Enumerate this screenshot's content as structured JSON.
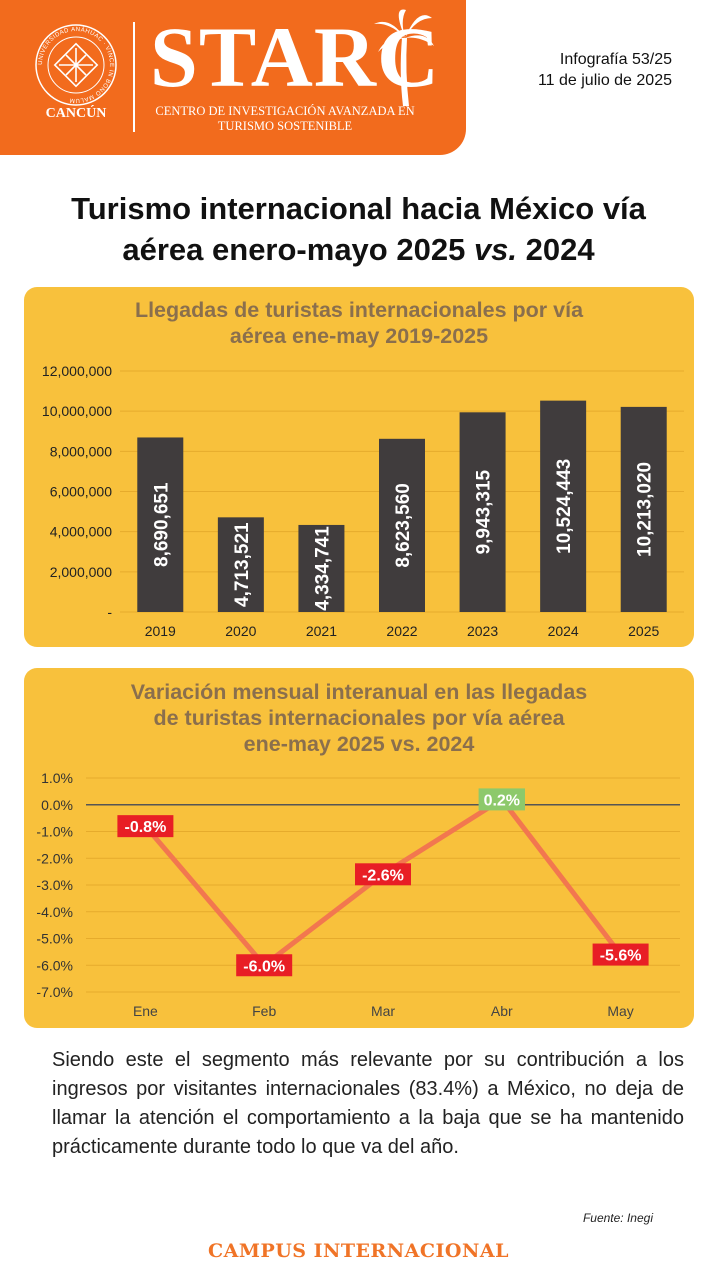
{
  "header": {
    "seal_ring_text": "UNIVERSIDAD ANÁHUAC · VINCE IN BONO MALUM",
    "campus": "CANCÚN",
    "brand": "STARC",
    "subtitle_line1": "CENTRO DE INVESTIGACIÓN AVANZADA EN",
    "subtitle_line2": "TURISMO SOSTENIBLE",
    "infografia": "Infografía 53/25",
    "date": "11 de julio de 2025"
  },
  "title": {
    "line1": "Turismo internacional hacia México vía",
    "line2_a": "aérea enero-mayo 2025 ",
    "line2_b": "vs.",
    "line2_c": " 2024"
  },
  "chart_data": [
    {
      "type": "bar",
      "title_line1": "Llegadas de turistas internacionales por vía",
      "title_line2": "aérea ene-may 2019-2025",
      "categories": [
        "2019",
        "2020",
        "2021",
        "2022",
        "2023",
        "2024",
        "2025"
      ],
      "values": [
        8690651,
        4713521,
        4334741,
        8623560,
        9943315,
        10524443,
        10213020
      ],
      "data_labels": [
        "8,690,651",
        "4,713,521",
        "4,334,741",
        "8,623,560",
        "9,943,315",
        "10,524,443",
        "10,213,020"
      ],
      "ylim": [
        0,
        12000000
      ],
      "yticks": [
        0,
        2000000,
        4000000,
        6000000,
        8000000,
        10000000,
        12000000
      ],
      "ytick_labels": [
        "-",
        "2,000,000",
        "4,000,000",
        "6,000,000",
        "8,000,000",
        "10,000,000",
        "12,000,000"
      ],
      "bar_color": "#403c3d",
      "title_color": "#8a6f4d"
    },
    {
      "type": "line",
      "title_line1": "Variación mensual interanual en las llegadas",
      "title_line2": "de turistas internacionales por vía aérea",
      "title_line3": "ene-may 2025 vs. 2024",
      "categories": [
        "Ene",
        "Feb",
        "Mar",
        "Abr",
        "May"
      ],
      "values": [
        -0.8,
        -6.0,
        -2.6,
        0.2,
        -5.6
      ],
      "data_labels": [
        "-0.8%",
        "-6.0%",
        "-2.6%",
        "0.2%",
        "-5.6%"
      ],
      "ylim": [
        -7.0,
        1.0
      ],
      "yticks": [
        1.0,
        0.0,
        -1.0,
        -2.0,
        -3.0,
        -4.0,
        -5.0,
        -6.0,
        -7.0
      ],
      "ytick_labels": [
        "1.0%",
        "0.0%",
        "-1.0%",
        "-2.0%",
        "-3.0%",
        "-4.0%",
        "-5.0%",
        "-6.0%",
        "-7.0%"
      ],
      "line_color": "#f2774f",
      "negative_label_color": "#e81e25",
      "positive_label_color": "#8dc96b"
    }
  ],
  "paragraph": "Siendo este el segmento más relevante por su contribución a los ingresos por visitantes internacionales (83.4%) a México, no deja de llamar la atención el comportamiento a la baja que se ha mantenido prácticamente durante todo lo que va del año.",
  "source": "Fuente: Inegi",
  "footer": "CAMPUS INTERNACIONAL",
  "colors": {
    "header_orange": "#f26b1d",
    "panel_yellow": "#f8c13c",
    "footer_orange": "#f07427"
  }
}
